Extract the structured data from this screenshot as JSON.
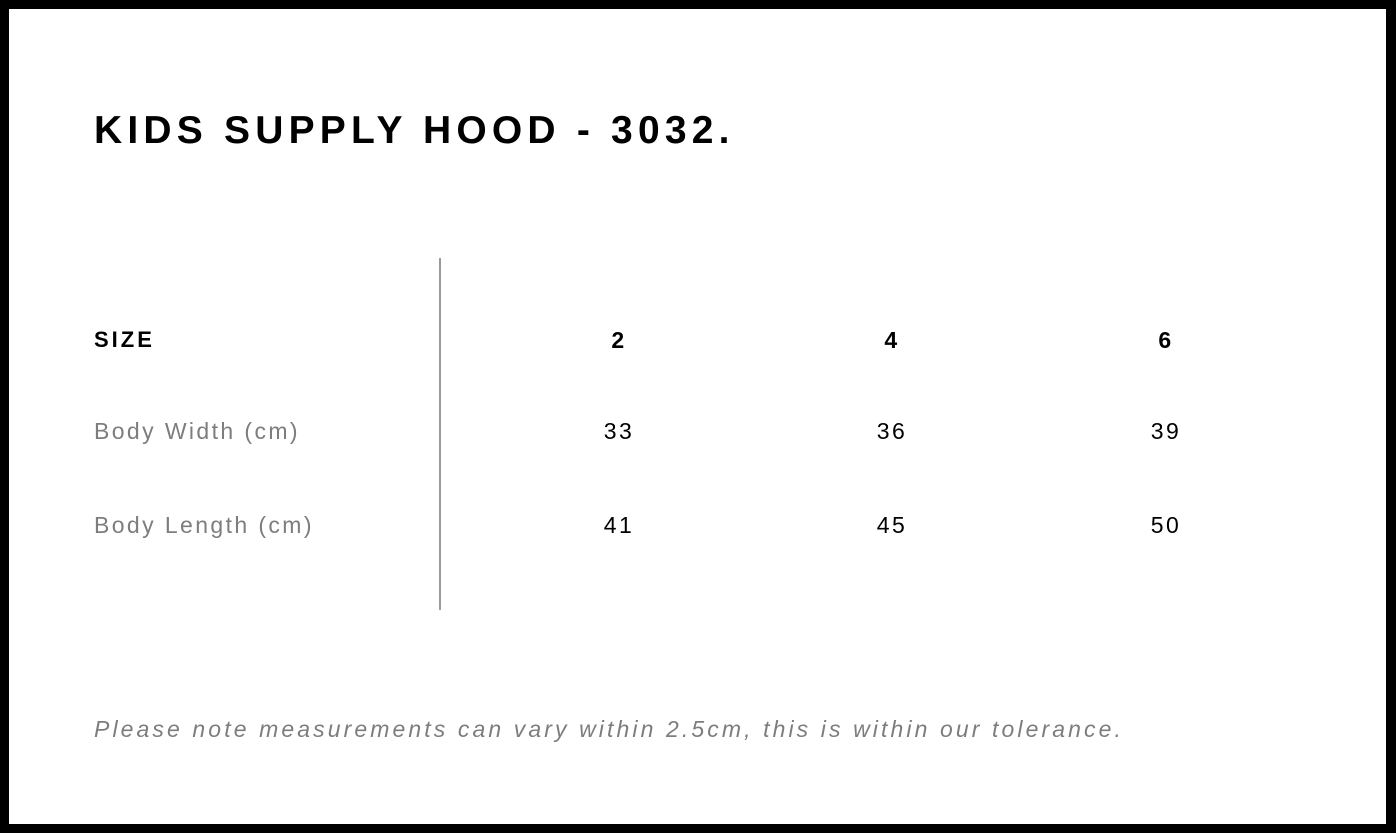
{
  "title": "KIDS SUPPLY HOOD - 3032.",
  "table": {
    "header": {
      "label": "SIZE",
      "sizes": [
        "2",
        "4",
        "6"
      ]
    },
    "rows": [
      {
        "label": "Body Width (cm)",
        "values": [
          "33",
          "36",
          "39"
        ]
      },
      {
        "label": "Body Length (cm)",
        "values": [
          "41",
          "45",
          "50"
        ]
      }
    ]
  },
  "note": "Please note measurements can vary within 2.5cm, this is within our tolerance.",
  "colors": {
    "frame": "#000000",
    "label_gray": "#7d7d7d",
    "divider": "#9a9a9a"
  }
}
